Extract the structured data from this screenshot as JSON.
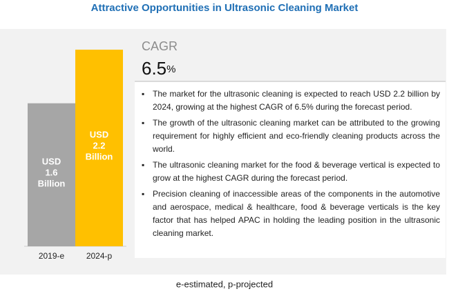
{
  "chart_data": {
    "type": "bar",
    "title": "Attractive Opportunities in Ultrasonic Cleaning Market",
    "categories": [
      "2019-e",
      "2024-p"
    ],
    "values": [
      1.6,
      2.2
    ],
    "value_labels": [
      "USD 1.6 Billion",
      "USD 2.2 Billion"
    ],
    "colors": [
      "#a6a6a6",
      "#ffc000"
    ],
    "cagr_label": "CAGR",
    "cagr_value": 6.5,
    "cagr_unit": "%",
    "bullets": [
      "The market for the ultrasonic cleaning is expected to reach USD 2.2 billion by 2024, growing at the highest CAGR of 6.5% during the forecast period.",
      "The growth of the ultrasonic cleaning market can be attributed to the growing requirement for highly efficient and eco-friendly cleaning products across the world.",
      "The ultrasonic cleaning market for the food & beverage vertical is expected to grow at the highest CAGR during the forecast period.",
      "Precision cleaning of inaccessible areas of the components in the automotive and aerospace, medical & healthcare, food & beverage verticals is the key factor that has helped APAC in holding the leading position in the ultrasonic cleaning market."
    ],
    "footnote": "e-estimated, p-projected"
  }
}
